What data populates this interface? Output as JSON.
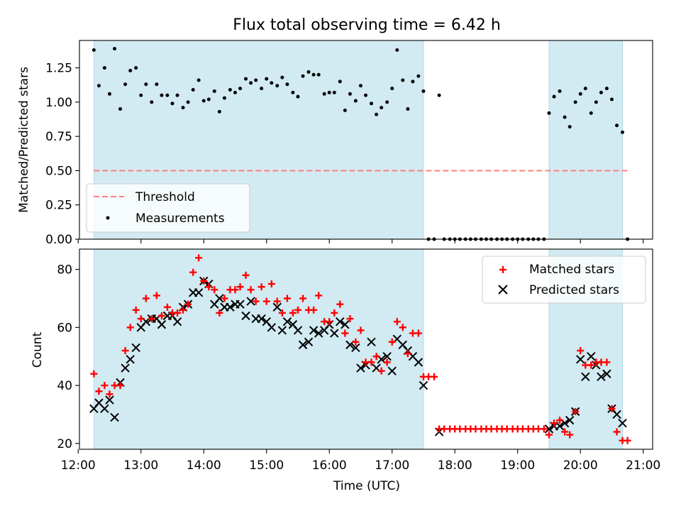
{
  "title": "Flux total observing time = 6.42 h",
  "colors": {
    "band": "#add8e6",
    "threshold": "#ff7f7f",
    "measurement": "#000000",
    "matched": "#ff0000",
    "predicted": "#000000"
  },
  "chart_data": [
    {
      "type": "scatter",
      "ylabel": "Matched/Predicted stars",
      "xlim": [
        12.02,
        21.15
      ],
      "ylim": [
        0,
        1.45
      ],
      "grid": false,
      "legend": "lower-left",
      "y_ticks": [
        0.0,
        0.25,
        0.5,
        0.75,
        1.0,
        1.25
      ],
      "y_tick_labels": [
        "0.00",
        "0.25",
        "0.50",
        "0.75",
        "1.00",
        "1.25"
      ],
      "observing_windows": [
        [
          12.25,
          17.5
        ],
        [
          19.5,
          20.67
        ]
      ],
      "threshold": {
        "name": "Threshold",
        "value": 0.5,
        "x_range": [
          12.25,
          20.75
        ]
      },
      "series": [
        {
          "name": "Measurements",
          "x": [
            12.25,
            12.33,
            12.42,
            12.5,
            12.58,
            12.67,
            12.75,
            12.83,
            12.92,
            13.0,
            13.08,
            13.17,
            13.25,
            13.33,
            13.42,
            13.5,
            13.58,
            13.67,
            13.75,
            13.83,
            13.92,
            14.0,
            14.08,
            14.17,
            14.25,
            14.33,
            14.42,
            14.5,
            14.58,
            14.67,
            14.75,
            14.83,
            14.92,
            15.0,
            15.08,
            15.17,
            15.25,
            15.33,
            15.42,
            15.5,
            15.58,
            15.67,
            15.75,
            15.83,
            15.92,
            16.0,
            16.08,
            16.17,
            16.25,
            16.33,
            16.42,
            16.5,
            16.58,
            16.67,
            16.75,
            16.83,
            16.92,
            17.0,
            17.08,
            17.17,
            17.25,
            17.33,
            17.42,
            17.5,
            17.58,
            17.67,
            17.75,
            17.83,
            17.92,
            18.0,
            18.08,
            18.17,
            18.25,
            18.33,
            18.42,
            18.5,
            18.58,
            18.67,
            18.75,
            18.83,
            18.92,
            19.0,
            19.08,
            19.17,
            19.25,
            19.33,
            19.42,
            19.5,
            19.58,
            19.67,
            19.75,
            19.83,
            19.92,
            20.0,
            20.08,
            20.17,
            20.25,
            20.33,
            20.42,
            20.5,
            20.58,
            20.67,
            20.75
          ],
          "y": [
            1.38,
            1.12,
            1.25,
            1.06,
            1.39,
            0.95,
            1.13,
            1.23,
            1.25,
            1.05,
            1.13,
            1.0,
            1.13,
            1.05,
            1.05,
            0.99,
            1.05,
            0.96,
            1.0,
            1.09,
            1.16,
            1.01,
            1.02,
            1.08,
            0.93,
            1.03,
            1.09,
            1.07,
            1.1,
            1.17,
            1.14,
            1.16,
            1.1,
            1.17,
            1.14,
            1.12,
            1.18,
            1.13,
            1.07,
            1.04,
            1.19,
            1.22,
            1.2,
            1.2,
            1.06,
            1.07,
            1.07,
            1.15,
            0.94,
            1.06,
            1.01,
            1.12,
            1.05,
            0.99,
            0.91,
            0.96,
            1.0,
            1.1,
            1.38,
            1.16,
            0.95,
            1.15,
            1.19,
            1.08,
            0,
            0,
            1.05,
            0,
            0,
            0,
            0,
            0,
            0,
            0,
            0,
            0,
            0,
            0,
            0,
            0,
            0,
            0,
            0,
            0,
            0,
            0,
            0,
            0.92,
            1.04,
            1.08,
            0.89,
            0.82,
            1.0,
            1.06,
            1.1,
            0.92,
            1.0,
            1.07,
            1.1,
            1.02,
            0.83,
            0.78,
            0
          ]
        }
      ]
    },
    {
      "type": "scatter",
      "xlabel": "Time (UTC)",
      "ylabel": "Count",
      "xlim": [
        12.02,
        21.15
      ],
      "ylim": [
        18,
        87
      ],
      "grid": false,
      "legend": "top-right",
      "x_ticks": [
        12,
        13,
        14,
        15,
        16,
        17,
        18,
        19,
        20,
        21
      ],
      "x_tick_labels": [
        "12:00",
        "13:00",
        "14:00",
        "15:00",
        "16:00",
        "17:00",
        "18:00",
        "19:00",
        "20:00",
        "21:00"
      ],
      "y_ticks": [
        20,
        40,
        60,
        80
      ],
      "y_tick_labels": [
        "20",
        "40",
        "60",
        "80"
      ],
      "observing_windows": [
        [
          12.25,
          17.5
        ],
        [
          19.5,
          20.67
        ]
      ],
      "series": [
        {
          "name": "Matched stars",
          "x": [
            12.25,
            12.33,
            12.42,
            12.5,
            12.58,
            12.67,
            12.75,
            12.83,
            12.92,
            13.0,
            13.08,
            13.17,
            13.25,
            13.33,
            13.42,
            13.5,
            13.58,
            13.67,
            13.75,
            13.83,
            13.92,
            14.0,
            14.08,
            14.17,
            14.25,
            14.33,
            14.42,
            14.5,
            14.58,
            14.67,
            14.75,
            14.83,
            14.92,
            15.0,
            15.08,
            15.17,
            15.25,
            15.33,
            15.42,
            15.5,
            15.58,
            15.67,
            15.75,
            15.83,
            15.92,
            16.0,
            16.08,
            16.17,
            16.25,
            16.33,
            16.42,
            16.5,
            16.58,
            16.67,
            16.75,
            16.83,
            16.92,
            17.0,
            17.08,
            17.17,
            17.25,
            17.33,
            17.42,
            17.5,
            17.58,
            17.67,
            17.75,
            17.83,
            17.92,
            18.0,
            18.08,
            18.17,
            18.25,
            18.33,
            18.42,
            18.5,
            18.58,
            18.67,
            18.75,
            18.83,
            18.92,
            19.0,
            19.08,
            19.17,
            19.25,
            19.33,
            19.42,
            19.5,
            19.58,
            19.67,
            19.75,
            19.83,
            19.92,
            20.0,
            20.08,
            20.17,
            20.25,
            20.33,
            20.42,
            20.5,
            20.58,
            20.67,
            20.75
          ],
          "y": [
            44,
            38,
            40,
            37,
            40,
            40,
            52,
            60,
            66,
            63,
            70,
            63,
            71,
            64,
            67,
            65,
            65,
            66,
            68,
            79,
            84,
            76,
            74,
            73,
            65,
            70,
            73,
            73,
            74,
            78,
            73,
            69,
            74,
            69,
            75,
            69,
            65,
            70,
            65,
            66,
            70,
            66,
            66,
            71,
            62,
            62,
            65,
            68,
            58,
            63,
            55,
            59,
            48,
            48,
            50,
            45,
            48,
            55,
            62,
            60,
            51,
            58,
            58,
            43,
            43,
            43,
            25,
            25,
            25,
            25,
            25,
            25,
            25,
            25,
            25,
            25,
            25,
            25,
            25,
            25,
            25,
            25,
            25,
            25,
            25,
            25,
            25,
            23,
            27,
            28,
            24,
            23,
            31,
            52,
            47,
            47,
            48,
            48,
            48,
            32,
            24,
            21,
            21
          ]
        },
        {
          "name": "Predicted stars",
          "x": [
            12.25,
            12.33,
            12.42,
            12.5,
            12.58,
            12.67,
            12.75,
            12.83,
            12.92,
            13.0,
            13.08,
            13.17,
            13.25,
            13.33,
            13.42,
            13.5,
            13.58,
            13.67,
            13.75,
            13.83,
            13.92,
            14.0,
            14.08,
            14.17,
            14.25,
            14.33,
            14.42,
            14.5,
            14.58,
            14.67,
            14.75,
            14.83,
            14.92,
            15.0,
            15.08,
            15.17,
            15.25,
            15.33,
            15.42,
            15.5,
            15.58,
            15.67,
            15.75,
            15.83,
            15.92,
            16.0,
            16.08,
            16.17,
            16.25,
            16.33,
            16.42,
            16.5,
            16.58,
            16.67,
            16.75,
            16.83,
            16.92,
            17.0,
            17.08,
            17.17,
            17.25,
            17.33,
            17.42,
            17.5,
            17.75,
            19.5,
            19.58,
            19.67,
            19.75,
            19.83,
            19.92,
            20.0,
            20.08,
            20.17,
            20.25,
            20.33,
            20.42,
            20.5,
            20.58,
            20.67
          ],
          "y": [
            32,
            34,
            32,
            35,
            29,
            41,
            46,
            49,
            53,
            60,
            62,
            63,
            63,
            61,
            64,
            64,
            62,
            67,
            68,
            72,
            72,
            76,
            75,
            68,
            70,
            67,
            67,
            68,
            68,
            64,
            69,
            63,
            63,
            62,
            60,
            67,
            59,
            62,
            61,
            59,
            54,
            55,
            59,
            58,
            59,
            61,
            58,
            62,
            61,
            54,
            53,
            46,
            47,
            55,
            46,
            49,
            50,
            45,
            56,
            54,
            52,
            50,
            48,
            40,
            24,
            25,
            26,
            26,
            27,
            28,
            31,
            49,
            43,
            50,
            47,
            43,
            44,
            32,
            30,
            27
          ]
        }
      ]
    }
  ]
}
